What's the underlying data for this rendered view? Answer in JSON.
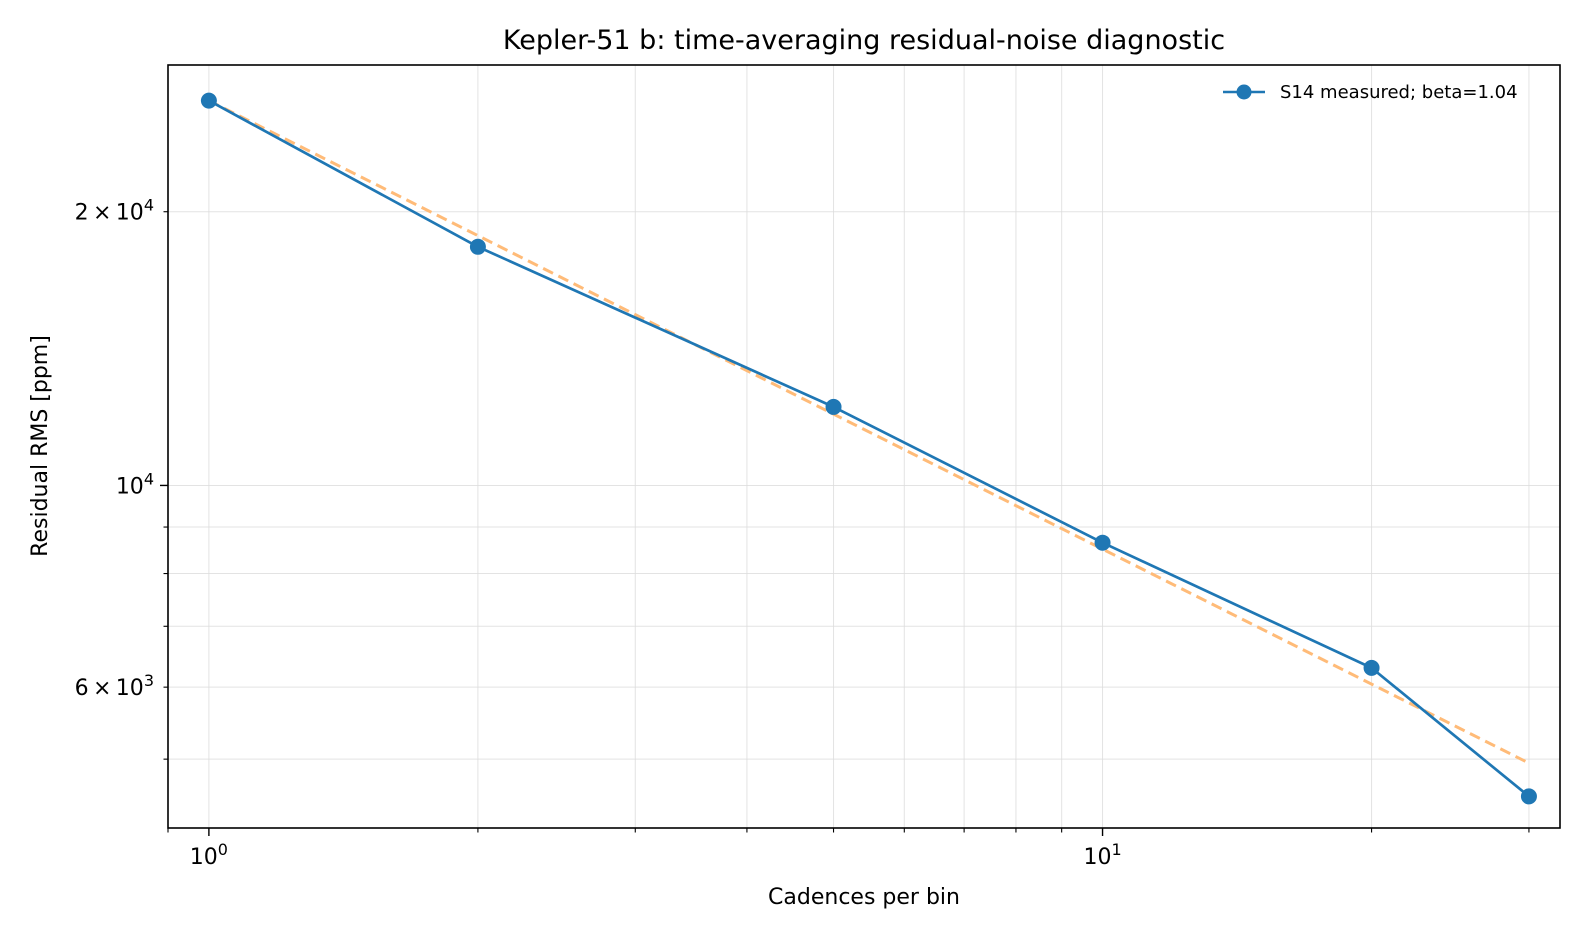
{
  "chart_data": {
    "type": "line",
    "title": "Kepler-51 b: time-averaging residual-noise diagnostic",
    "xlabel": "Cadences per bin",
    "ylabel": "Residual RMS [ppm]",
    "xscale": "log",
    "yscale": "log",
    "xlim": [
      0.9,
      32.5
    ],
    "ylim": [
      4200,
      29000
    ],
    "grid": true,
    "legend_position": "top-right",
    "x_ticks": [
      {
        "value": 1,
        "base": "10",
        "exp": "0"
      },
      {
        "value": 10,
        "base": "10",
        "exp": "1"
      }
    ],
    "y_ticks": [
      {
        "value": 6000,
        "mant": "6",
        "exp": "3"
      },
      {
        "value": 10000,
        "mant": "",
        "exp": "4"
      },
      {
        "value": 20000,
        "mant": "2",
        "exp": "4"
      }
    ],
    "times_sign": "×",
    "series": [
      {
        "name": "S14 measured; beta=1.04",
        "style": "solid-marker",
        "color": "#1f77b4",
        "x": [
          1,
          2,
          5,
          10,
          20,
          30
        ],
        "y": [
          26500,
          18300,
          12200,
          8650,
          6300,
          4550
        ]
      },
      {
        "style": "dashed",
        "color": "#ffbb78",
        "x": [
          1,
          30
        ],
        "y": [
          26500,
          4950
        ]
      }
    ]
  }
}
